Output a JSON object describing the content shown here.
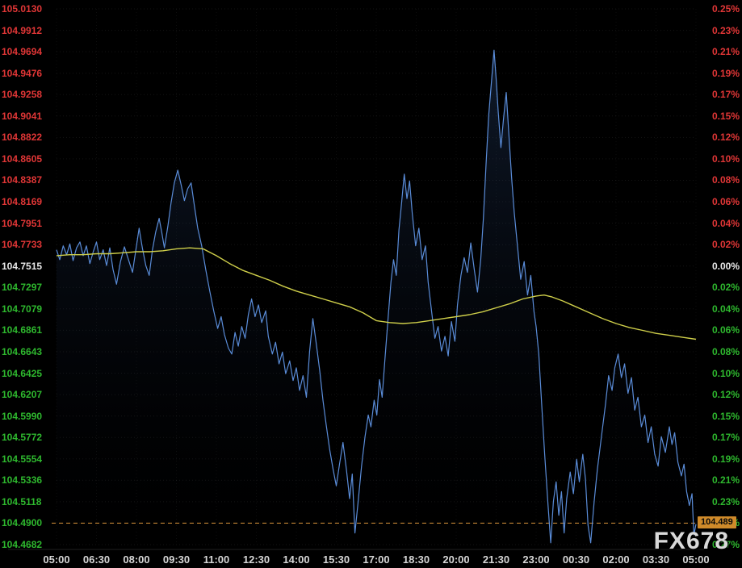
{
  "watermark": "FX678",
  "last_price_label": "104.489",
  "colors": {
    "background": "#000000",
    "up": "#e03636",
    "down": "#2eb82e",
    "neutral": "#e8e8e8",
    "time_label": "#d6d6d6",
    "price_line": "#5a8cd8",
    "area_top": "rgba(60,100,165,0.30)",
    "area_bottom": "rgba(5,10,25,0)",
    "ma_line": "#cfcf4a",
    "last_price_line": "#d8923a",
    "badge_bg": "#cf8a2a",
    "badge_text": "#0a0a0a",
    "grid_h": "rgba(255,255,255,0.08)",
    "grid_v": "rgba(255,255,255,0.05)",
    "watermark": "#d9d9d9"
  },
  "left_axis": {
    "labels": [
      "105.0130",
      "104.9912",
      "104.9694",
      "104.9476",
      "104.9258",
      "104.9041",
      "104.8822",
      "104.8605",
      "104.8387",
      "104.8169",
      "104.7951",
      "104.7733",
      "104.7515",
      "104.7297",
      "104.7079",
      "104.6861",
      "104.6643",
      "104.6425",
      "104.6207",
      "104.5990",
      "104.5772",
      "104.5554",
      "104.5336",
      "104.5118",
      "104.4900",
      "104.4682"
    ],
    "colors": [
      "up",
      "up",
      "up",
      "up",
      "up",
      "up",
      "up",
      "up",
      "up",
      "up",
      "up",
      "up",
      "neutral",
      "down",
      "down",
      "down",
      "down",
      "down",
      "down",
      "down",
      "down",
      "down",
      "down",
      "down",
      "down",
      "down"
    ]
  },
  "right_axis": {
    "labels": [
      "0.25%",
      "0.23%",
      "0.21%",
      "0.19%",
      "0.17%",
      "0.15%",
      "0.12%",
      "0.10%",
      "0.08%",
      "0.06%",
      "0.04%",
      "0.02%",
      "0.00%",
      "0.02%",
      "0.04%",
      "0.06%",
      "0.08%",
      "0.10%",
      "0.12%",
      "0.15%",
      "0.17%",
      "0.19%",
      "0.21%",
      "0.23%",
      "0.25%",
      "0.27%"
    ],
    "colors": [
      "up",
      "up",
      "up",
      "up",
      "up",
      "up",
      "up",
      "up",
      "up",
      "up",
      "up",
      "up",
      "neutral",
      "down",
      "down",
      "down",
      "down",
      "down",
      "down",
      "down",
      "down",
      "down",
      "down",
      "down",
      "down",
      "down"
    ]
  },
  "time_axis": {
    "labels": [
      "05:00",
      "06:30",
      "08:00",
      "09:30",
      "11:00",
      "12:30",
      "14:00",
      "15:30",
      "17:00",
      "18:30",
      "20:00",
      "21:30",
      "23:00",
      "00:30",
      "02:00",
      "03:30",
      "05:00"
    ]
  },
  "chart_data": {
    "type": "line",
    "x_unit": "hours since 05:00",
    "x_range": [
      0,
      24
    ],
    "ylim": [
      104.4682,
      105.013
    ],
    "baseline_price": 104.7515,
    "reference_line": {
      "price": 104.49,
      "label": "104.489"
    },
    "grid": true,
    "series": [
      {
        "name": "price",
        "color_key": "price_line",
        "fill": true,
        "points": [
          [
            0.0,
            104.768
          ],
          [
            0.12,
            104.758
          ],
          [
            0.25,
            104.772
          ],
          [
            0.38,
            104.763
          ],
          [
            0.5,
            104.774
          ],
          [
            0.62,
            104.757
          ],
          [
            0.75,
            104.77
          ],
          [
            0.88,
            104.776
          ],
          [
            1.0,
            104.762
          ],
          [
            1.12,
            104.772
          ],
          [
            1.25,
            104.754
          ],
          [
            1.38,
            104.766
          ],
          [
            1.5,
            104.776
          ],
          [
            1.62,
            104.758
          ],
          [
            1.75,
            104.768
          ],
          [
            1.88,
            104.752
          ],
          [
            2.0,
            104.77
          ],
          [
            2.12,
            104.748
          ],
          [
            2.25,
            104.733
          ],
          [
            2.4,
            104.756
          ],
          [
            2.55,
            104.771
          ],
          [
            2.7,
            104.758
          ],
          [
            2.85,
            104.745
          ],
          [
            3.0,
            104.772
          ],
          [
            3.1,
            104.79
          ],
          [
            3.22,
            104.77
          ],
          [
            3.35,
            104.752
          ],
          [
            3.48,
            104.742
          ],
          [
            3.6,
            104.768
          ],
          [
            3.72,
            104.786
          ],
          [
            3.85,
            104.8
          ],
          [
            3.95,
            104.786
          ],
          [
            4.05,
            104.77
          ],
          [
            4.18,
            104.792
          ],
          [
            4.3,
            104.816
          ],
          [
            4.42,
            104.836
          ],
          [
            4.55,
            104.849
          ],
          [
            4.68,
            104.834
          ],
          [
            4.8,
            104.818
          ],
          [
            4.92,
            104.83
          ],
          [
            5.05,
            104.836
          ],
          [
            5.18,
            104.812
          ],
          [
            5.3,
            104.79
          ],
          [
            5.45,
            104.772
          ],
          [
            5.6,
            104.748
          ],
          [
            5.75,
            104.726
          ],
          [
            5.9,
            104.706
          ],
          [
            6.05,
            104.688
          ],
          [
            6.18,
            104.7
          ],
          [
            6.3,
            104.682
          ],
          [
            6.45,
            104.668
          ],
          [
            6.58,
            104.662
          ],
          [
            6.7,
            104.684
          ],
          [
            6.82,
            104.67
          ],
          [
            6.95,
            104.69
          ],
          [
            7.08,
            104.678
          ],
          [
            7.2,
            104.702
          ],
          [
            7.32,
            104.718
          ],
          [
            7.45,
            104.7
          ],
          [
            7.58,
            104.712
          ],
          [
            7.7,
            104.694
          ],
          [
            7.85,
            104.706
          ],
          [
            7.95,
            104.68
          ],
          [
            8.1,
            104.662
          ],
          [
            8.22,
            104.674
          ],
          [
            8.35,
            104.652
          ],
          [
            8.48,
            104.664
          ],
          [
            8.6,
            104.642
          ],
          [
            8.75,
            104.655
          ],
          [
            8.88,
            104.635
          ],
          [
            9.0,
            104.648
          ],
          [
            9.12,
            104.625
          ],
          [
            9.25,
            104.64
          ],
          [
            9.38,
            104.618
          ],
          [
            9.5,
            104.665
          ],
          [
            9.62,
            104.698
          ],
          [
            9.75,
            104.672
          ],
          [
            9.88,
            104.645
          ],
          [
            10.0,
            104.615
          ],
          [
            10.12,
            104.59
          ],
          [
            10.25,
            104.565
          ],
          [
            10.38,
            104.545
          ],
          [
            10.5,
            104.528
          ],
          [
            10.62,
            104.55
          ],
          [
            10.75,
            104.572
          ],
          [
            10.88,
            104.545
          ],
          [
            11.0,
            104.515
          ],
          [
            11.1,
            104.54
          ],
          [
            11.2,
            104.48
          ],
          [
            11.32,
            104.512
          ],
          [
            11.45,
            104.548
          ],
          [
            11.58,
            104.578
          ],
          [
            11.7,
            104.6
          ],
          [
            11.8,
            104.588
          ],
          [
            11.92,
            104.615
          ],
          [
            12.02,
            104.6
          ],
          [
            12.12,
            104.636
          ],
          [
            12.22,
            104.618
          ],
          [
            12.32,
            104.655
          ],
          [
            12.45,
            104.7
          ],
          [
            12.55,
            104.735
          ],
          [
            12.65,
            104.758
          ],
          [
            12.75,
            104.742
          ],
          [
            12.85,
            104.788
          ],
          [
            12.95,
            104.815
          ],
          [
            13.05,
            104.845
          ],
          [
            13.15,
            104.82
          ],
          [
            13.25,
            104.838
          ],
          [
            13.35,
            104.805
          ],
          [
            13.48,
            104.772
          ],
          [
            13.6,
            104.79
          ],
          [
            13.72,
            104.758
          ],
          [
            13.85,
            104.772
          ],
          [
            13.95,
            104.735
          ],
          [
            14.08,
            104.705
          ],
          [
            14.2,
            104.678
          ],
          [
            14.32,
            104.69
          ],
          [
            14.45,
            104.665
          ],
          [
            14.58,
            104.68
          ],
          [
            14.7,
            104.66
          ],
          [
            14.82,
            104.695
          ],
          [
            14.95,
            104.675
          ],
          [
            15.05,
            104.712
          ],
          [
            15.18,
            104.742
          ],
          [
            15.3,
            104.76
          ],
          [
            15.42,
            104.745
          ],
          [
            15.55,
            104.775
          ],
          [
            15.68,
            104.748
          ],
          [
            15.8,
            104.725
          ],
          [
            15.92,
            104.758
          ],
          [
            16.02,
            104.8
          ],
          [
            16.12,
            104.855
          ],
          [
            16.22,
            104.905
          ],
          [
            16.32,
            104.938
          ],
          [
            16.42,
            104.971
          ],
          [
            16.5,
            104.942
          ],
          [
            16.58,
            104.908
          ],
          [
            16.68,
            104.872
          ],
          [
            16.78,
            104.902
          ],
          [
            16.88,
            104.928
          ],
          [
            16.98,
            104.885
          ],
          [
            17.08,
            104.842
          ],
          [
            17.18,
            104.806
          ],
          [
            17.3,
            104.772
          ],
          [
            17.42,
            104.738
          ],
          [
            17.55,
            104.756
          ],
          [
            17.68,
            104.722
          ],
          [
            17.8,
            104.742
          ],
          [
            17.92,
            104.705
          ],
          [
            18.0,
            104.69
          ],
          [
            18.1,
            104.662
          ],
          [
            18.2,
            104.615
          ],
          [
            18.32,
            104.56
          ],
          [
            18.45,
            104.508
          ],
          [
            18.55,
            104.47
          ],
          [
            18.65,
            104.512
          ],
          [
            18.75,
            104.532
          ],
          [
            18.85,
            104.498
          ],
          [
            18.95,
            104.522
          ],
          [
            19.05,
            104.48
          ],
          [
            19.15,
            104.515
          ],
          [
            19.28,
            104.542
          ],
          [
            19.4,
            104.52
          ],
          [
            19.52,
            104.555
          ],
          [
            19.62,
            104.532
          ],
          [
            19.75,
            104.56
          ],
          [
            19.85,
            104.535
          ],
          [
            19.95,
            104.488
          ],
          [
            20.05,
            104.47
          ],
          [
            20.18,
            104.512
          ],
          [
            20.3,
            104.545
          ],
          [
            20.45,
            104.578
          ],
          [
            20.6,
            104.61
          ],
          [
            20.72,
            104.64
          ],
          [
            20.85,
            104.625
          ],
          [
            20.95,
            104.648
          ],
          [
            21.08,
            104.662
          ],
          [
            21.2,
            104.638
          ],
          [
            21.32,
            104.652
          ],
          [
            21.45,
            104.622
          ],
          [
            21.58,
            104.638
          ],
          [
            21.7,
            104.605
          ],
          [
            21.82,
            104.618
          ],
          [
            21.95,
            104.588
          ],
          [
            22.08,
            104.6
          ],
          [
            22.2,
            104.572
          ],
          [
            22.32,
            104.588
          ],
          [
            22.45,
            104.56
          ],
          [
            22.58,
            104.548
          ],
          [
            22.7,
            104.578
          ],
          [
            22.85,
            104.562
          ],
          [
            23.0,
            104.588
          ],
          [
            23.1,
            104.57
          ],
          [
            23.2,
            104.582
          ],
          [
            23.32,
            104.552
          ],
          [
            23.45,
            104.538
          ],
          [
            23.55,
            104.55
          ],
          [
            23.65,
            104.522
          ],
          [
            23.75,
            104.508
          ],
          [
            23.85,
            104.52
          ],
          [
            23.92,
            104.478
          ],
          [
            24.0,
            104.489
          ]
        ]
      },
      {
        "name": "moving_average",
        "color_key": "ma_line",
        "fill": false,
        "points": [
          [
            0,
            104.762
          ],
          [
            0.5,
            104.763
          ],
          [
            1,
            104.763
          ],
          [
            1.5,
            104.764
          ],
          [
            2,
            104.764
          ],
          [
            2.5,
            104.765
          ],
          [
            3,
            104.766
          ],
          [
            3.5,
            104.766
          ],
          [
            4,
            104.767
          ],
          [
            4.5,
            104.769
          ],
          [
            5,
            104.77
          ],
          [
            5.5,
            104.769
          ],
          [
            6,
            104.762
          ],
          [
            6.5,
            104.754
          ],
          [
            7,
            104.747
          ],
          [
            7.5,
            104.742
          ],
          [
            8,
            104.737
          ],
          [
            8.5,
            104.731
          ],
          [
            9,
            104.726
          ],
          [
            9.5,
            104.722
          ],
          [
            10,
            104.718
          ],
          [
            10.5,
            104.714
          ],
          [
            11,
            104.71
          ],
          [
            11.5,
            104.704
          ],
          [
            12,
            104.696
          ],
          [
            12.5,
            104.694
          ],
          [
            13,
            104.693
          ],
          [
            13.5,
            104.694
          ],
          [
            14,
            104.696
          ],
          [
            14.5,
            104.698
          ],
          [
            15,
            104.7
          ],
          [
            15.5,
            104.702
          ],
          [
            16,
            104.705
          ],
          [
            16.5,
            104.709
          ],
          [
            17,
            104.713
          ],
          [
            17.5,
            104.718
          ],
          [
            18,
            104.721
          ],
          [
            18.3,
            104.722
          ],
          [
            18.6,
            104.72
          ],
          [
            19,
            104.716
          ],
          [
            19.5,
            104.71
          ],
          [
            20,
            104.704
          ],
          [
            20.5,
            104.698
          ],
          [
            21,
            104.693
          ],
          [
            21.5,
            104.689
          ],
          [
            22,
            104.686
          ],
          [
            22.5,
            104.683
          ],
          [
            23,
            104.681
          ],
          [
            23.5,
            104.679
          ],
          [
            24,
            104.677
          ]
        ]
      }
    ]
  }
}
